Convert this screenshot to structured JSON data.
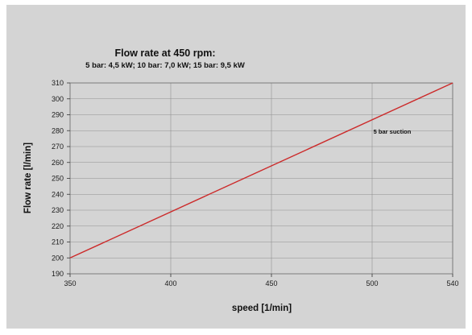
{
  "chart_data": {
    "type": "line",
    "title": "Flow rate at 450 rpm:",
    "subtitle": "5 bar: 4,5 kW; 10 bar: 7,0 kW; 15 bar: 9,5 kW",
    "xlabel": "speed [1/min]",
    "ylabel": "Flow rate [l/min]",
    "xlim": [
      350,
      540
    ],
    "ylim": [
      190,
      310
    ],
    "xticks": [
      350,
      400,
      450,
      500,
      540
    ],
    "yticks": [
      190,
      200,
      210,
      220,
      230,
      240,
      250,
      260,
      270,
      280,
      290,
      300,
      310
    ],
    "grid": true,
    "series": [
      {
        "name": "5 bar suction",
        "color": "#cc2a2a",
        "x": [
          350,
          540
        ],
        "y": [
          200,
          310
        ]
      }
    ],
    "annotations": [
      {
        "text": "5 bar suction",
        "x": 510,
        "y": 278
      }
    ],
    "colors": {
      "background": "#d4d4d4",
      "plot_background": "#d4d4d4",
      "grid": "#8f8f8f"
    }
  }
}
